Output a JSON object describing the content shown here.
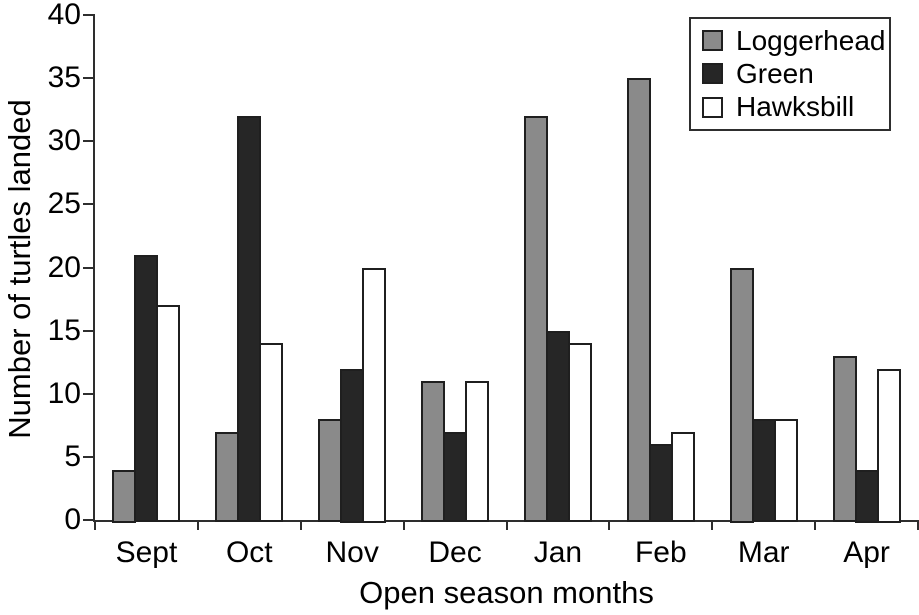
{
  "chart_data": {
    "type": "bar",
    "title": "",
    "xlabel": "Open season months",
    "ylabel": "Number of turtles landed",
    "categories": [
      "Sept",
      "Oct",
      "Nov",
      "Dec",
      "Jan",
      "Feb",
      "Mar",
      "Apr"
    ],
    "series": [
      {
        "name": "Loggerhead",
        "color": "#8a8a8a",
        "values": [
          4,
          7,
          8,
          11,
          32,
          35,
          20,
          13
        ]
      },
      {
        "name": "Green",
        "color": "#262626",
        "values": [
          21,
          32,
          12,
          7,
          15,
          6,
          8,
          4
        ]
      },
      {
        "name": "Hawksbill",
        "color": "#ffffff",
        "values": [
          17,
          14,
          20,
          11,
          14,
          7,
          8,
          12
        ]
      }
    ],
    "ylim": [
      0,
      40
    ],
    "yticks": [
      0,
      5,
      10,
      15,
      20,
      25,
      30,
      35,
      40
    ],
    "grid": false,
    "legend_position": "top-right",
    "colors": {
      "axis": "#2e2e2e",
      "bar_border": "#1f1f1f",
      "background": "#ffffff",
      "text": "#000000"
    }
  }
}
